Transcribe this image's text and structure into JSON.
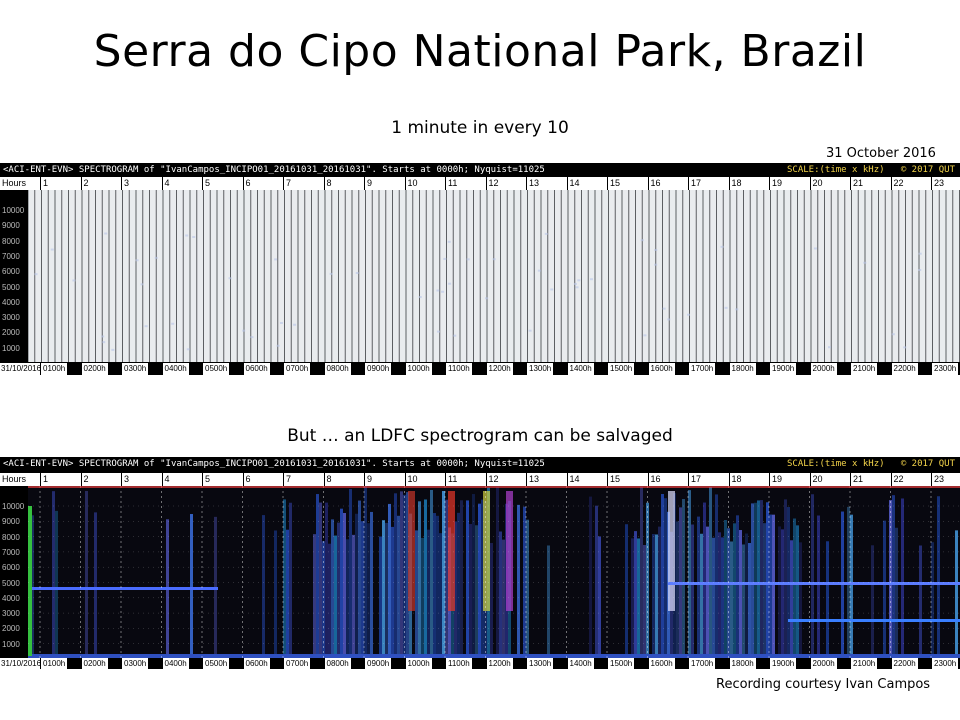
{
  "slide": {
    "title": "Serra do Cipo National Park, Brazil",
    "caption_top": "1 minute in every 10",
    "date": "31 October 2016",
    "caption_middle": "But … an LDFC  spectrogram can be salvaged",
    "credit": "Recording  courtesy Ivan Campos"
  },
  "spectrogram_header": {
    "left": "<ACI-ENT-EVN> SPECTROGRAM  of \"IvanCampos_INCIPO01_20161031_20161031\".   Starts at 0000h; Nyquist=11025",
    "scale": "SCALE:(time x kHz)",
    "copyright": "© 2017 QUT"
  },
  "axis": {
    "hours_label": "Hours",
    "hour_ticks": [
      "1",
      "2",
      "3",
      "4",
      "5",
      "6",
      "7",
      "8",
      "9",
      "10",
      "11",
      "12",
      "13",
      "14",
      "15",
      "16",
      "17",
      "18",
      "19",
      "20",
      "21",
      "22",
      "23"
    ],
    "date_label": "31/10/2016",
    "bottom_ticks": [
      "0100h",
      "0200h",
      "0300h",
      "0400h",
      "0500h",
      "0600h",
      "0700h",
      "0800h",
      "0900h",
      "1000h",
      "1100h",
      "1200h",
      "1300h",
      "1400h",
      "1500h",
      "1600h",
      "1700h",
      "1800h",
      "1900h",
      "2000h",
      "2100h",
      "2200h",
      "2300h"
    ],
    "freq_labels": [
      "10000",
      "9000",
      "8000",
      "7000",
      "6000",
      "5000",
      "4000",
      "3000",
      "2000",
      "1000"
    ]
  },
  "colors": {
    "background": "#ffffff",
    "spectrogram_bg": "#000000",
    "scale_text": "#f3d44a"
  }
}
